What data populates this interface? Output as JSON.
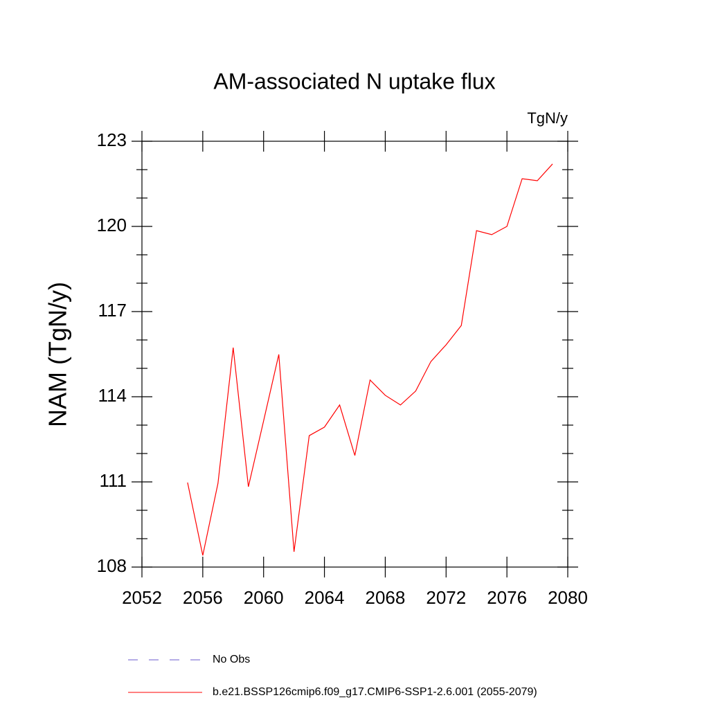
{
  "chart_data": {
    "type": "line",
    "title": "AM-associated N uptake flux",
    "units": "TgN/y",
    "y_label": "NAM  (TgN/y)",
    "x": [
      2055,
      2056,
      2057,
      2058,
      2059,
      2060,
      2061,
      2062,
      2063,
      2064,
      2065,
      2066,
      2067,
      2068,
      2069,
      2070,
      2071,
      2072,
      2073,
      2074,
      2075,
      2076,
      2077,
      2078,
      2079
    ],
    "series": [
      {
        "name": "No Obs",
        "color": "#6a5acd",
        "dashed": true,
        "values": [
          null,
          null,
          null,
          null,
          null,
          null,
          null,
          null,
          null,
          null,
          null,
          null,
          null,
          null,
          null,
          null,
          null,
          null,
          null,
          null,
          null,
          null,
          null,
          null,
          null
        ]
      },
      {
        "name": "b.e21.BSSP126cmip6.f09_g17.CMIP6-SSP1-2.6.001 (2055-2079)",
        "color": "#ff0000",
        "dashed": false,
        "values": [
          110.98,
          108.41,
          110.95,
          115.73,
          110.83,
          113.15,
          115.49,
          108.54,
          112.63,
          112.93,
          113.71,
          111.93,
          114.59,
          114.05,
          113.71,
          114.2,
          115.24,
          115.83,
          116.51,
          119.85,
          119.71,
          120.0,
          121.68,
          121.61,
          122.2
        ]
      }
    ],
    "xlim": [
      2052,
      2080
    ],
    "xticks": [
      2052,
      2056,
      2060,
      2064,
      2068,
      2072,
      2076,
      2080
    ],
    "ylim": [
      108,
      123
    ],
    "yticks": [
      108,
      111,
      114,
      117,
      120,
      123
    ],
    "grid": false
  }
}
